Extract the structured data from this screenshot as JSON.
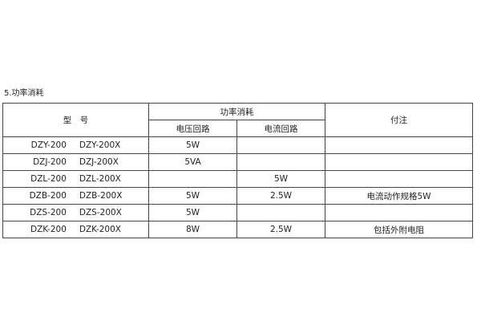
{
  "section_title": "5.功率消耗",
  "header": {
    "model": "型　号",
    "power": "功率消耗",
    "voltage_circuit": "电压回路",
    "current_circuit": "电流回路",
    "notes": "付注"
  },
  "rows": [
    {
      "model_a": "DZY-200",
      "model_b": "DZY-200X",
      "voltage": "5W",
      "current": "",
      "note": ""
    },
    {
      "model_a": "DZJ-200",
      "model_b": "DZJ-200X",
      "voltage": "5VA",
      "current": "",
      "note": ""
    },
    {
      "model_a": "DZL-200",
      "model_b": "DZL-200X",
      "voltage": "",
      "current": "5W",
      "note": ""
    },
    {
      "model_a": "DZB-200",
      "model_b": "DZB-200X",
      "voltage": "5W",
      "current": "2.5W",
      "note": "电流动作规格5W"
    },
    {
      "model_a": "DZS-200",
      "model_b": "DZS-200X",
      "voltage": "5W",
      "current": "",
      "note": ""
    },
    {
      "model_a": "DZK-200",
      "model_b": "DZK-200X",
      "voltage": "8W",
      "current": "2.5W",
      "note": "包括外附电阻"
    }
  ]
}
